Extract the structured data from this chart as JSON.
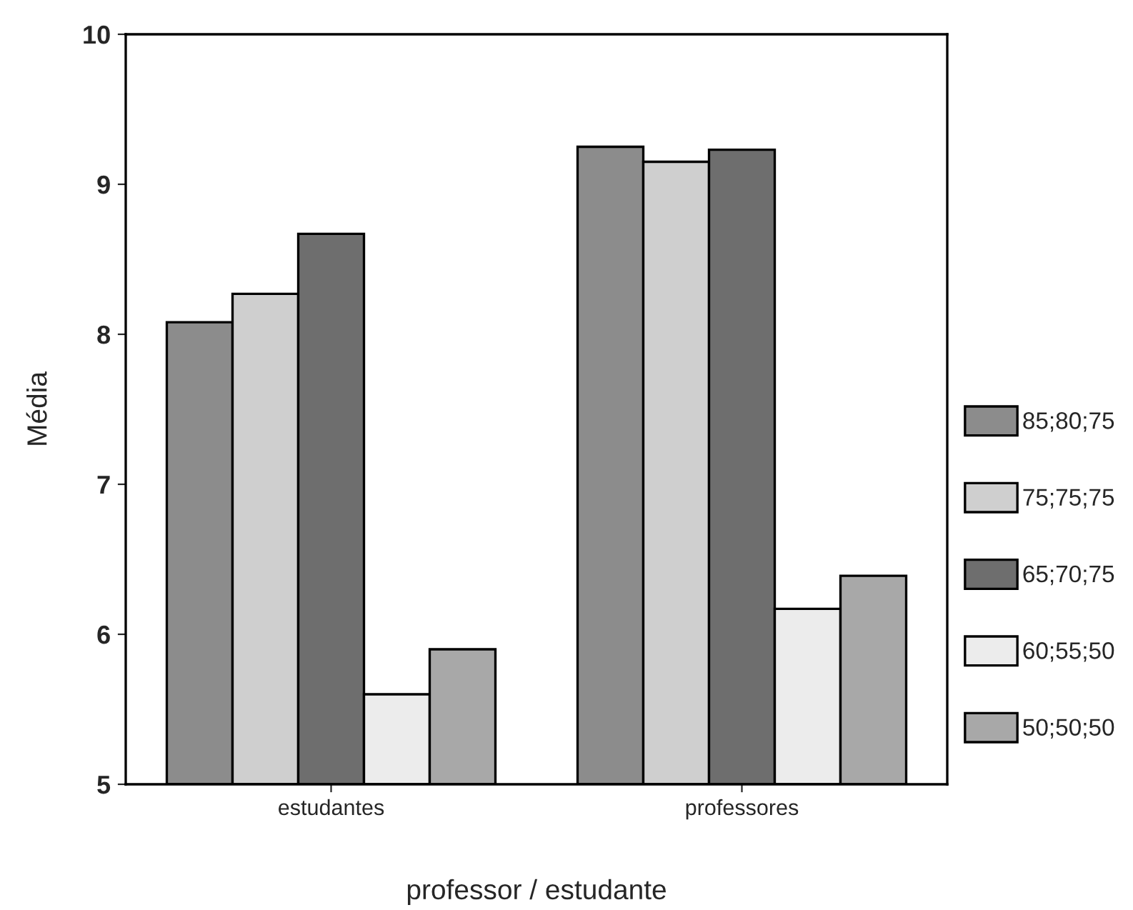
{
  "chart_data": {
    "type": "bar",
    "xlabel": "professor / estudante",
    "ylabel": "Média",
    "categories": [
      "estudantes",
      "professores"
    ],
    "series": [
      {
        "name": "85;80;75",
        "color": "#8c8c8c",
        "values": [
          8.08,
          9.25
        ]
      },
      {
        "name": "75;75;75",
        "color": "#cfcfcf",
        "values": [
          8.27,
          9.15
        ]
      },
      {
        "name": "65;70;75",
        "color": "#6e6e6e",
        "values": [
          8.67,
          9.23
        ]
      },
      {
        "name": "60;55;50",
        "color": "#ececec",
        "values": [
          5.6,
          6.17
        ]
      },
      {
        "name": "50;50;50",
        "color": "#a8a8a8",
        "values": [
          5.9,
          6.39
        ]
      }
    ],
    "ylim": [
      5,
      10
    ],
    "yticks": [
      5,
      6,
      7,
      8,
      9,
      10
    ],
    "grid": false,
    "legend": "right"
  }
}
